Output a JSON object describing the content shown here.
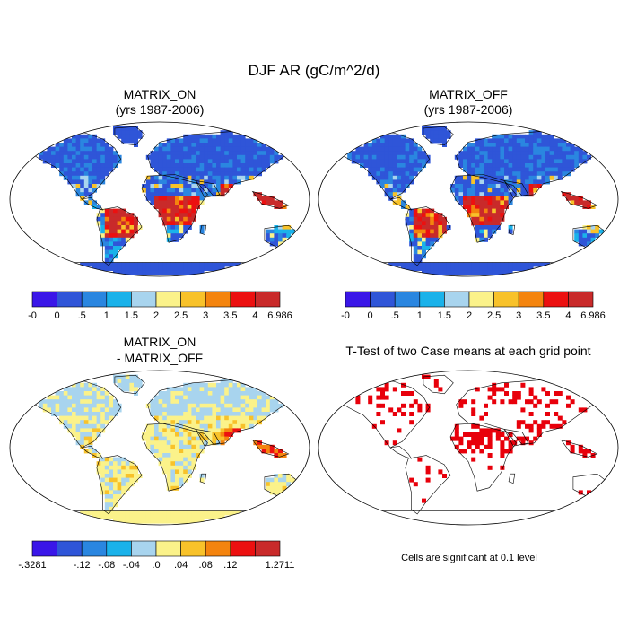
{
  "figure": {
    "title": "DJF AR (gC/m^2/d)",
    "footnote": "Cells are significant at 0.1 level"
  },
  "colors": {
    "ocean": "#ffffff",
    "border": "#000000",
    "significant": "#e8000b"
  },
  "chart_data": [
    {
      "type": "heatmap",
      "name": "matrix-on",
      "title": "MATRIX_ON",
      "subtitle": "(yrs 1987-2006)",
      "colorbar": {
        "labels": [
          "-0",
          "0",
          ".5",
          "1",
          "1.5",
          "2",
          "2.5",
          "3",
          "3.5",
          "4",
          "6.986"
        ],
        "colors": [
          "#3a16e8",
          "#2f55d8",
          "#2a86e0",
          "#1ab2ea",
          "#a8d4ee",
          "#fbf28a",
          "#f8c22a",
          "#f4840e",
          "#ec1010",
          "#c92a2a"
        ],
        "min": "-0",
        "max": "6.986"
      },
      "dominant_class": "0 to .5 over mid/high-latitude land, > 4 over tropical rainforest"
    },
    {
      "type": "heatmap",
      "name": "matrix-off",
      "title": "MATRIX_OFF",
      "subtitle": "(yrs 1987-2006)",
      "colorbar": {
        "labels": [
          "-0",
          "0",
          ".5",
          "1",
          "1.5",
          "2",
          "2.5",
          "3",
          "3.5",
          "4",
          "6.986"
        ],
        "colors": [
          "#3a16e8",
          "#2f55d8",
          "#2a86e0",
          "#1ab2ea",
          "#a8d4ee",
          "#fbf28a",
          "#f8c22a",
          "#f4840e",
          "#ec1010",
          "#c92a2a"
        ],
        "min": "-0",
        "max": "6.986"
      },
      "dominant_class": "0 to .5 over mid/high-latitude land, > 4 over tropical rainforest"
    },
    {
      "type": "heatmap",
      "name": "difference",
      "title": "MATRIX_ON",
      "subtitle": "- MATRIX_OFF",
      "colorbar": {
        "labels": [
          "-.3281",
          "",
          "-.12",
          "-.08",
          "-.04",
          ".0",
          ".04",
          ".08",
          ".12",
          "",
          "1.2711"
        ],
        "colors": [
          "#3a16e8",
          "#2f55d8",
          "#2a86e0",
          "#1ab2ea",
          "#a8d4ee",
          "#fbf28a",
          "#f8c22a",
          "#f4840e",
          "#ec1010",
          "#c92a2a"
        ],
        "min": "-.3281",
        "max": "1.2711"
      },
      "dominant_class": "-.04 to .0 in northern high latitudes, .0 to .04 elsewhere"
    },
    {
      "type": "heatmap",
      "name": "t-test",
      "title": "T-Test of two Case means at each grid point",
      "subtitle": "",
      "colorbar": null,
      "dominant_class": "significant cells in red"
    }
  ]
}
